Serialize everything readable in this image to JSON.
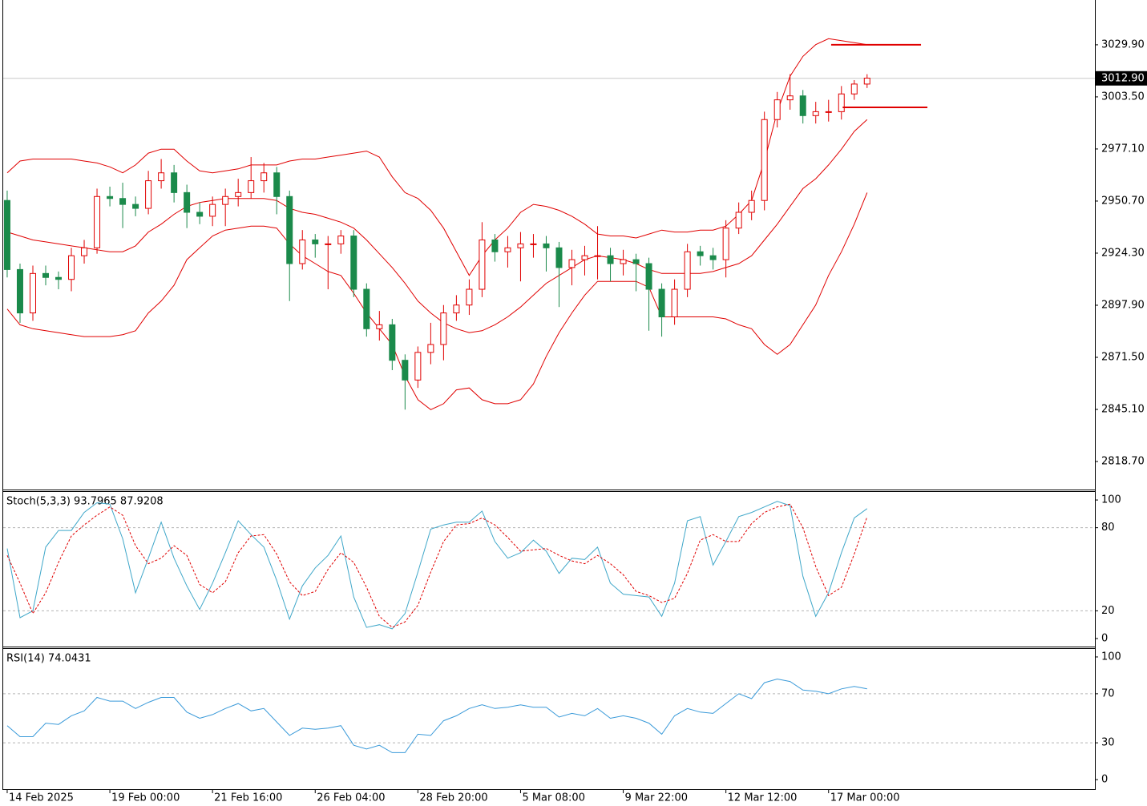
{
  "chart_data": [
    {
      "type": "candlestick",
      "xlim": [
        -0.31,
        84.75
      ],
      "xticks": [
        {
          "value": 0,
          "label": "14 Feb 2025"
        },
        {
          "value": 8,
          "label": "19 Feb 00:00"
        },
        {
          "value": 16,
          "label": "21 Feb 16:00"
        },
        {
          "value": 24,
          "label": "26 Feb 04:00"
        },
        {
          "value": 32,
          "label": "28 Feb 20:00"
        },
        {
          "value": 40,
          "label": "5 Mar 08:00"
        },
        {
          "value": 48,
          "label": "9 Mar 22:00"
        },
        {
          "value": 56,
          "label": "12 Mar 12:00"
        },
        {
          "value": 64,
          "label": "17 Mar 00:00"
        }
      ],
      "ylim": [
        2804.5,
        3052.6
      ],
      "yticks": [
        {
          "value": 3029.9,
          "label": "3029.90"
        },
        {
          "value": 3003.5,
          "label": "3003.50"
        },
        {
          "value": 2977.1,
          "label": "2977.10"
        },
        {
          "value": 2950.7,
          "label": "2950.70"
        },
        {
          "value": 2924.3,
          "label": "2924.30"
        },
        {
          "value": 2897.9,
          "label": "2897.90"
        },
        {
          "value": 2871.5,
          "label": "2871.50"
        },
        {
          "value": 2845.1,
          "label": "2845.10"
        },
        {
          "value": 2818.7,
          "label": "2818.70"
        }
      ],
      "up_color": "#ffffff",
      "up_edge": "#e00000",
      "down_color": "#1b8a4b",
      "open": [
        2951,
        2916,
        2894,
        2914,
        2912,
        2911,
        2923,
        2927,
        2953,
        2952,
        2949,
        2947,
        2961,
        2965,
        2955,
        2945,
        2943,
        2949,
        2953,
        2955,
        2961,
        2965,
        2953,
        2919,
        2931,
        2929,
        2929,
        2933,
        2906,
        2886,
        2888,
        2870,
        2860,
        2874,
        2878,
        2894,
        2898,
        2906,
        2931,
        2925,
        2927,
        2929,
        2929,
        2927,
        2917,
        2921,
        2923,
        2923,
        2919,
        2921,
        2919,
        2906,
        2892,
        2906,
        2925,
        2923,
        2921,
        2937,
        2945,
        2951,
        2992,
        3002,
        3004,
        2994,
        2996,
        2996,
        3005,
        3010
      ],
      "high": [
        2956,
        2919,
        2918,
        2918,
        2915,
        2927,
        2931,
        2957,
        2958,
        2960,
        2953,
        2966,
        2972,
        2969,
        2959,
        2950,
        2953,
        2957,
        2962,
        2973,
        2970,
        2968,
        2956,
        2936,
        2934,
        2933,
        2936,
        2936,
        2909,
        2895,
        2891,
        2873,
        2877,
        2889,
        2898,
        2903,
        2911,
        2940,
        2934,
        2933,
        2935,
        2934,
        2933,
        2930,
        2926,
        2928,
        2938,
        2927,
        2926,
        2924,
        2922,
        2909,
        2911,
        2929,
        2928,
        2927,
        2941,
        2950,
        2956,
        2996,
        3006,
        3015,
        3007,
        3001,
        3002,
        3009,
        3012,
        3015
      ],
      "low": [
        2912,
        2889,
        2890,
        2908,
        2906,
        2905,
        2919,
        2924,
        2948,
        2937,
        2943,
        2944,
        2957,
        2950,
        2937,
        2939,
        2938,
        2938,
        2948,
        2952,
        2955,
        2944,
        2900,
        2916,
        2922,
        2906,
        2924,
        2902,
        2882,
        2880,
        2865,
        2845,
        2856,
        2868,
        2870,
        2890,
        2893,
        2902,
        2920,
        2917,
        2910,
        2922,
        2915,
        2897,
        2908,
        2913,
        2911,
        2910,
        2913,
        2905,
        2885,
        2882,
        2888,
        2902,
        2918,
        2916,
        2912,
        2934,
        2941,
        2946,
        2988,
        2997,
        2990,
        2990,
        2991,
        2992,
        3002,
        3008
      ],
      "close": [
        2916,
        2894,
        2914,
        2912,
        2911,
        2923,
        2927,
        2953,
        2952,
        2949,
        2947,
        2961,
        2965,
        2955,
        2945,
        2943,
        2949,
        2953,
        2955,
        2961,
        2965,
        2953,
        2919,
        2931,
        2929,
        2929,
        2933,
        2906,
        2886,
        2888,
        2870,
        2860,
        2874,
        2878,
        2894,
        2898,
        2906,
        2931,
        2925,
        2927,
        2929,
        2929,
        2927,
        2917,
        2921,
        2923,
        2923,
        2919,
        2921,
        2919,
        2906,
        2892,
        2906,
        2925,
        2923,
        2921,
        2937,
        2945,
        2951,
        2992,
        3002,
        3004,
        2994,
        2996,
        2996,
        3005,
        3010,
        3013
      ],
      "bollinger": {
        "color": "#e00000",
        "upper": [
          2965,
          2971,
          2972,
          2972,
          2972,
          2972,
          2971,
          2970,
          2968,
          2965,
          2969,
          2975,
          2977,
          2977,
          2971,
          2966,
          2965,
          2966,
          2967,
          2969,
          2969,
          2969,
          2971,
          2972,
          2972,
          2973,
          2974,
          2975,
          2976,
          2973,
          2963,
          2955,
          2952,
          2946,
          2937,
          2925,
          2913,
          2923,
          2931,
          2937,
          2945,
          2949,
          2948,
          2946,
          2943,
          2939,
          2934,
          2933,
          2933,
          2932,
          2934,
          2936,
          2935,
          2935,
          2936,
          2936,
          2938,
          2944,
          2951,
          2971,
          2996,
          3014,
          3024,
          3030,
          3033,
          3032,
          3031,
          3030
        ],
        "middle": [
          2935,
          2933,
          2931,
          2930,
          2929,
          2928,
          2927,
          2926,
          2925,
          2925,
          2928,
          2935,
          2939,
          2944,
          2948,
          2950,
          2951,
          2952,
          2952,
          2952,
          2952,
          2951,
          2947,
          2945,
          2944,
          2942,
          2940,
          2937,
          2931,
          2924,
          2917,
          2909,
          2900,
          2894,
          2889,
          2886,
          2884,
          2885,
          2888,
          2892,
          2897,
          2903,
          2909,
          2913,
          2917,
          2921,
          2923,
          2922,
          2921,
          2919,
          2916,
          2914,
          2914,
          2914,
          2914,
          2915,
          2917,
          2919,
          2923,
          2931,
          2939,
          2948,
          2957,
          2962,
          2969,
          2977,
          2986,
          2992
        ],
        "lower": [
          2896,
          2888,
          2886,
          2885,
          2884,
          2883,
          2882,
          2882,
          2882,
          2883,
          2885,
          2894,
          2900,
          2908,
          2921,
          2927,
          2933,
          2936,
          2937,
          2938,
          2938,
          2937,
          2929,
          2923,
          2919,
          2915,
          2913,
          2904,
          2894,
          2886,
          2878,
          2862,
          2850,
          2845,
          2848,
          2855,
          2856,
          2850,
          2848,
          2848,
          2850,
          2858,
          2872,
          2884,
          2894,
          2903,
          2910,
          2910,
          2910,
          2910,
          2907,
          2892,
          2892,
          2892,
          2892,
          2892,
          2891,
          2888,
          2886,
          2878,
          2873,
          2878,
          2888,
          2898,
          2913,
          2925,
          2939,
          2955
        ]
      },
      "levels": [
        {
          "value": 3029.9,
          "x": [
            64.2,
            71.2
          ]
        },
        {
          "value": 2998.2,
          "x": [
            65.1,
            71.7
          ]
        }
      ],
      "level_color": "#e00000",
      "last_price": {
        "value": 3012.9,
        "label": "3012.90"
      }
    },
    {
      "type": "line",
      "label": "Stoch(5,3,3) 93.7965 87.9208",
      "ylim": [
        -5.8,
        106.4
      ],
      "yticks": [
        0,
        20,
        80,
        100
      ],
      "dashed_levels": [
        20,
        80
      ],
      "series": [
        {
          "color": "#3fa7c9",
          "values": [
            65,
            15,
            20,
            66,
            78,
            78,
            91,
            98,
            97,
            72,
            33,
            58,
            84,
            58,
            38,
            21,
            40,
            62,
            85,
            75,
            66,
            42,
            14,
            38,
            51,
            60,
            74,
            30,
            8,
            10,
            7,
            18,
            48,
            79,
            82,
            84,
            84,
            92,
            70,
            58,
            62,
            71,
            63,
            47,
            58,
            57,
            66,
            40,
            32,
            31,
            30,
            16,
            40,
            85,
            88,
            53,
            70,
            88,
            91,
            95,
            99,
            96,
            45,
            16,
            33,
            62,
            87,
            93.7965
          ]
        },
        {
          "color": "#e00000",
          "dash": true,
          "values": [
            60,
            40,
            18,
            33,
            55,
            74,
            82,
            89,
            95,
            89,
            67,
            54,
            58,
            67,
            60,
            39,
            33,
            41,
            62,
            74,
            75,
            61,
            41,
            31,
            34,
            50,
            62,
            55,
            37,
            16,
            8,
            12,
            24,
            48,
            70,
            82,
            83,
            87,
            82,
            73,
            63,
            64,
            65,
            60,
            56,
            54,
            60,
            54,
            46,
            34,
            31,
            26,
            29,
            47,
            71,
            75,
            70,
            70,
            83,
            91,
            95,
            97,
            80,
            52,
            31,
            37,
            61,
            87.9208
          ]
        }
      ]
    },
    {
      "type": "line",
      "label": "RSI(14) 74.0431",
      "ylim": [
        -7.8,
        106.5
      ],
      "yticks": [
        0,
        30,
        70,
        100
      ],
      "dashed_levels": [
        30,
        70
      ],
      "series": [
        {
          "color": "#3a9ad9",
          "values": [
            44,
            35,
            35,
            46,
            45,
            52,
            56,
            67,
            64,
            64,
            58,
            63,
            67,
            67,
            55,
            50,
            53,
            58,
            62,
            56,
            58,
            47,
            36,
            42,
            41,
            42,
            44,
            28,
            25,
            28,
            22,
            22,
            37,
            36,
            48,
            52,
            58,
            61,
            58,
            59,
            61,
            59,
            59,
            51,
            54,
            52,
            58,
            50,
            52,
            50,
            46,
            37,
            52,
            58,
            55,
            54,
            62,
            70,
            66,
            79,
            82,
            80,
            73,
            72,
            70,
            74,
            76,
            74.0431
          ]
        }
      ]
    }
  ]
}
